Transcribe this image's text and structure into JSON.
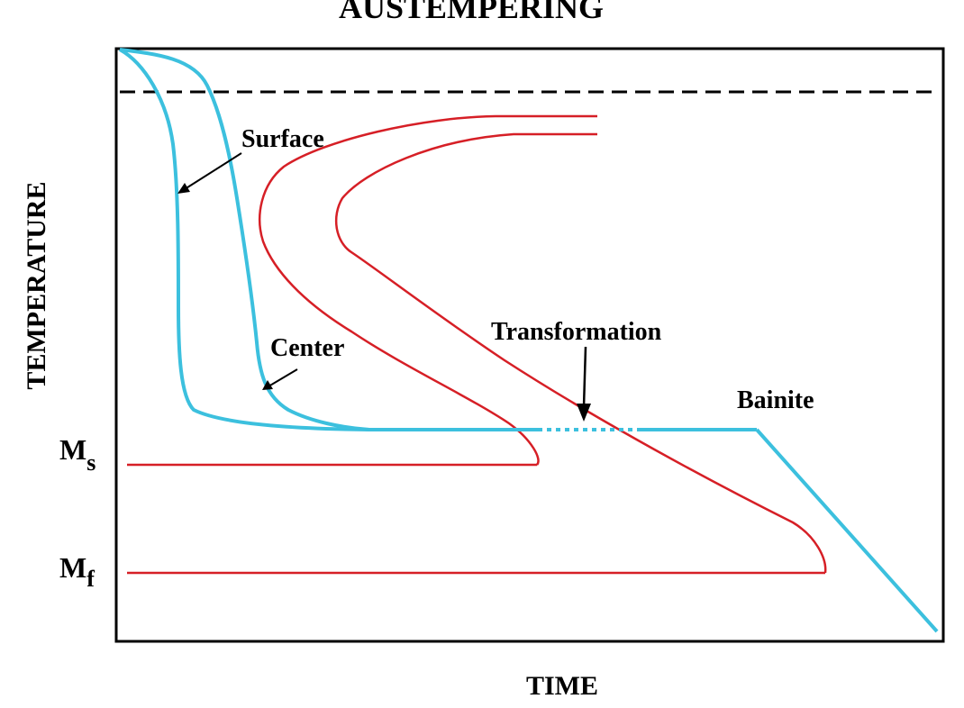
{
  "title": "AUSTEMPERING",
  "axes": {
    "x_label": "TIME",
    "y_label": "TEMPERATURE"
  },
  "levels": {
    "ms_main": "M",
    "ms_sub": "s",
    "mf_main": "M",
    "mf_sub": "f"
  },
  "annotations": {
    "surface": "Surface",
    "center": "Center",
    "transformation": "Transformation",
    "bainite": "Bainite"
  },
  "colors": {
    "cooling_curves": "#3cc0de",
    "transformation_curves": "#d61f26",
    "frame": "#000000",
    "text": "#000000"
  }
}
